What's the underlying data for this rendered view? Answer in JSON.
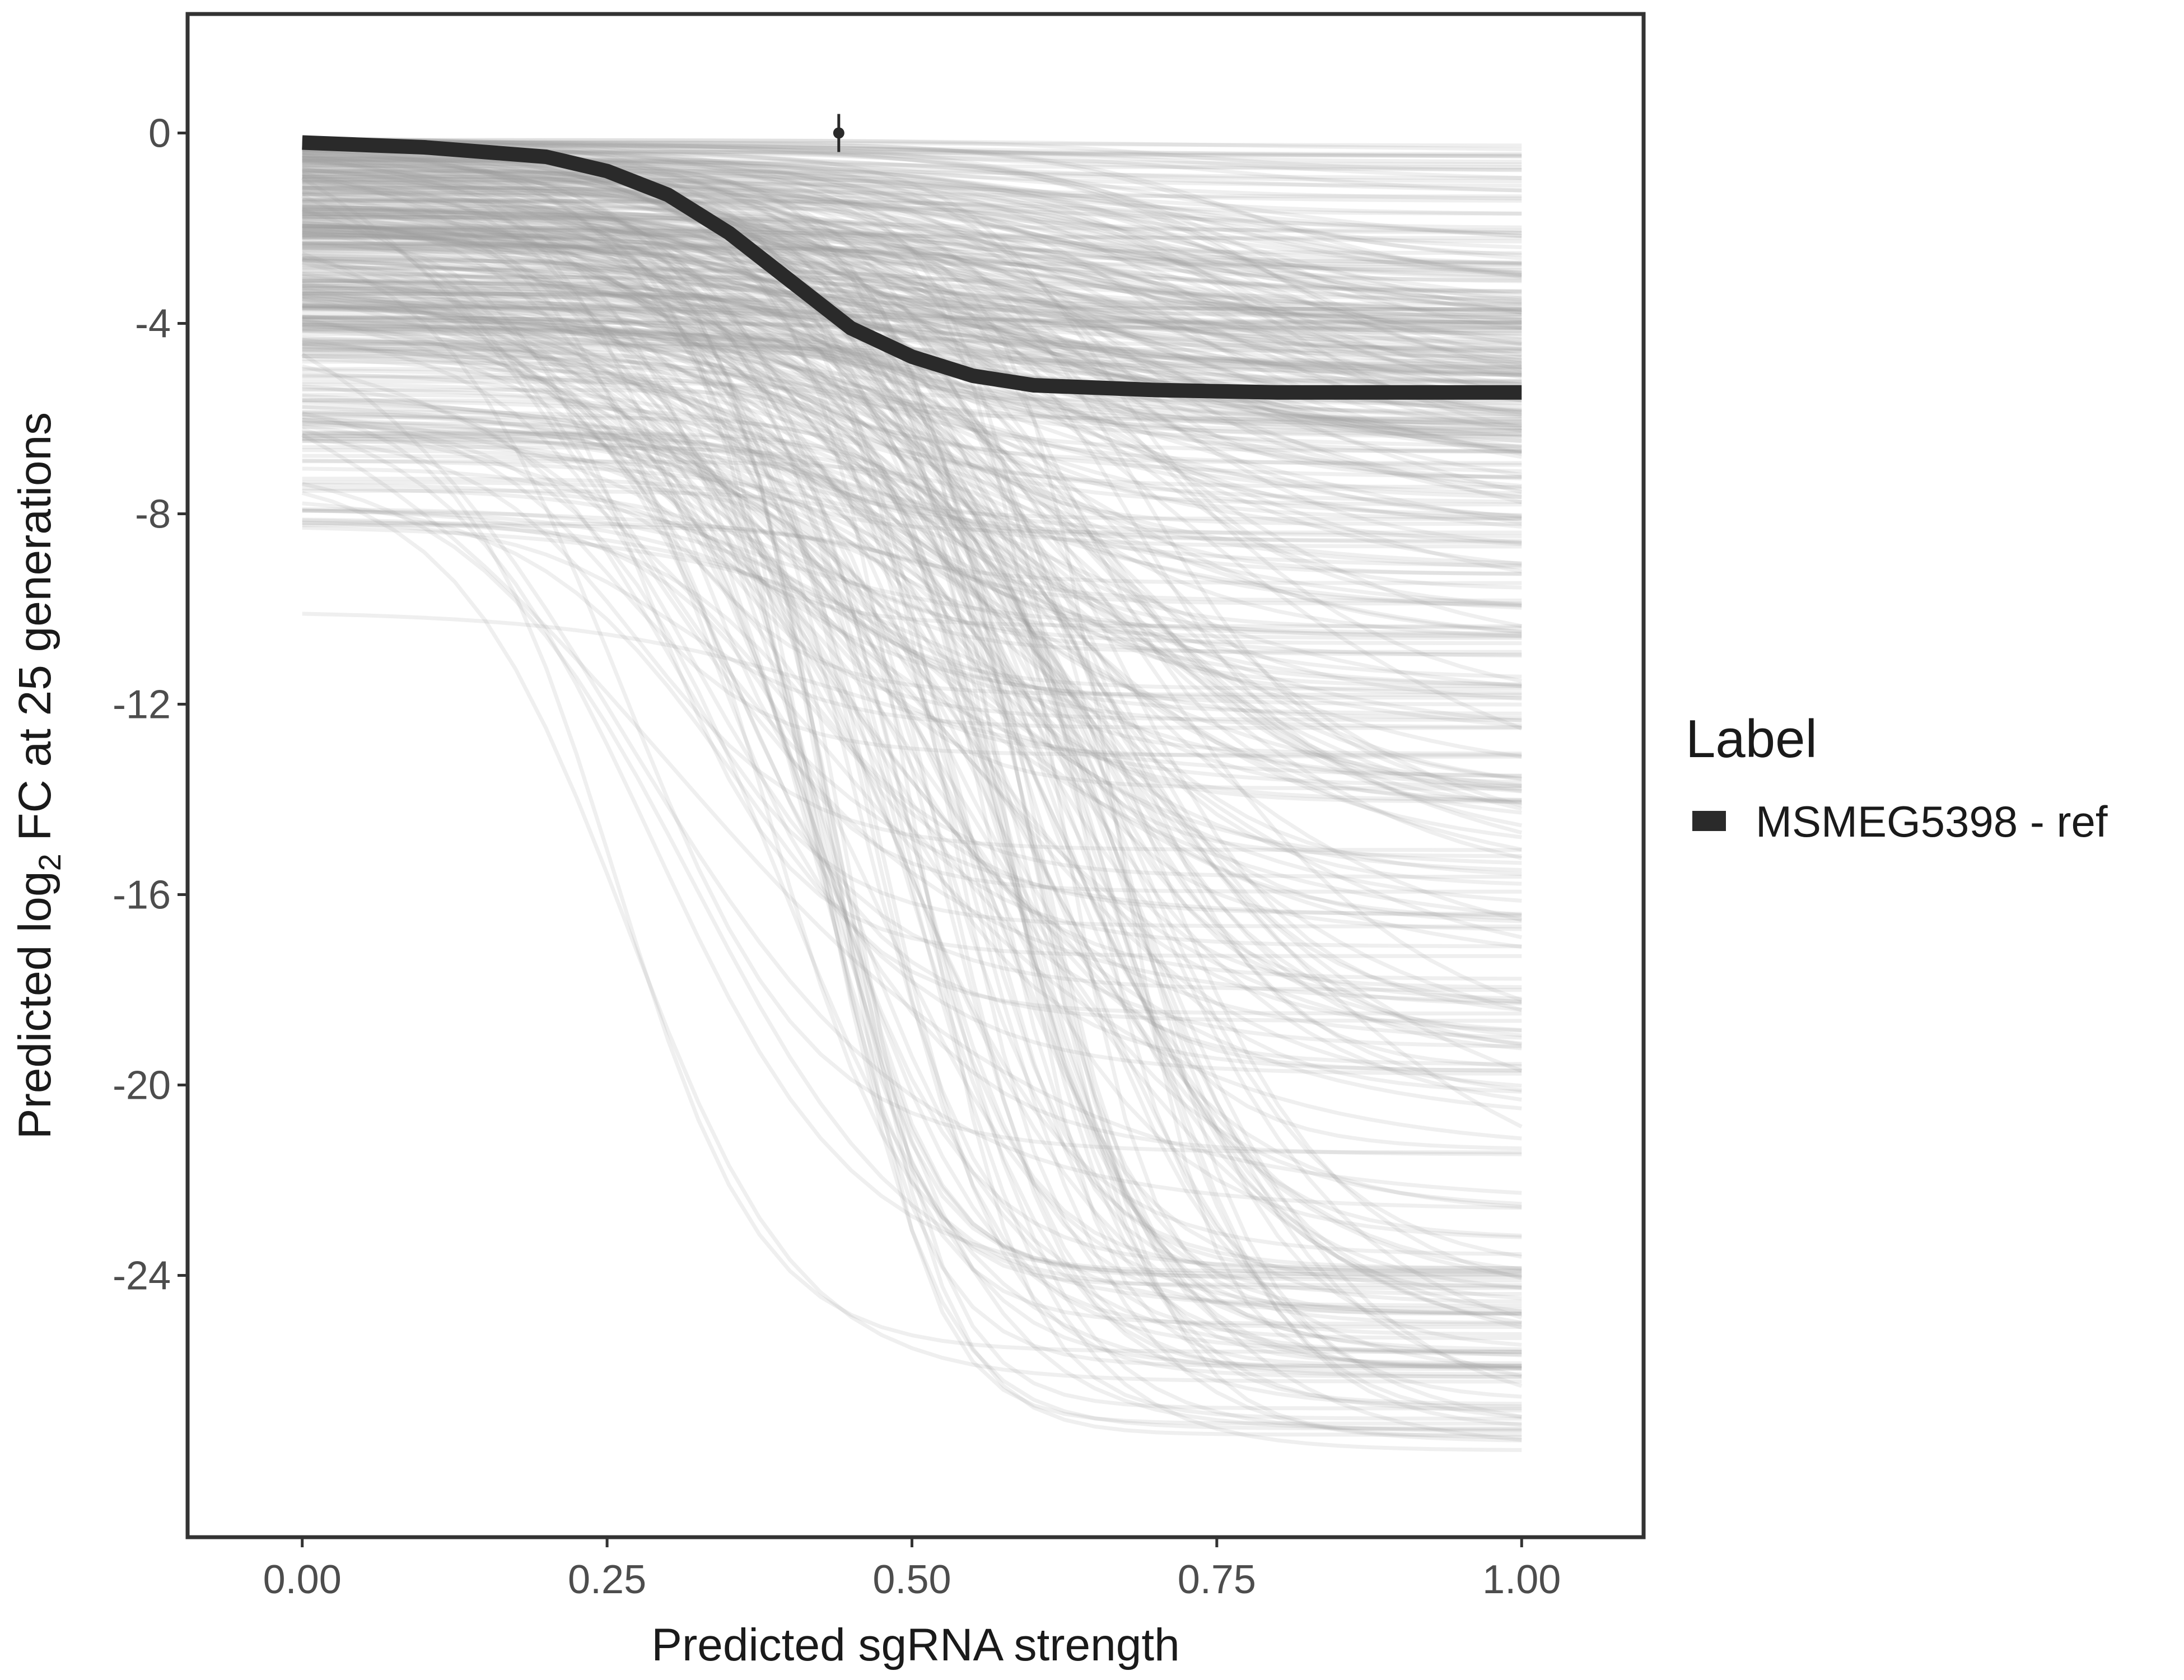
{
  "chart_data": {
    "type": "line",
    "title": "",
    "xlabel": "Predicted sgRNA strength",
    "ylabel_parts": {
      "prefix": "Predicted  log",
      "subscript": "2",
      "suffix": " FC at 25 generations"
    },
    "xlim": [
      -0.094,
      1.1
    ],
    "ylim": [
      -29.5,
      2.5
    ],
    "x_ticks": [
      0,
      0.25,
      0.5,
      0.75,
      1
    ],
    "x_tick_labels": [
      "0.00",
      "0.25",
      "0.50",
      "0.75",
      "1.00"
    ],
    "y_ticks": [
      0,
      -4,
      -8,
      -12,
      -16,
      -20,
      -24
    ],
    "y_tick_labels": [
      "0",
      "-4",
      "-8",
      "-12",
      "-16",
      "-20",
      "-24"
    ],
    "grid": false,
    "legend": {
      "title": "Label",
      "position": "right",
      "entries": [
        {
          "label": "MSMEG5398 - ref",
          "color": "#2a2a2a"
        }
      ]
    },
    "highlight_series": {
      "name": "MSMEG5398 - ref",
      "color": "#2a2a2a",
      "x": [
        0,
        0.1,
        0.2,
        0.25,
        0.3,
        0.35,
        0.4,
        0.45,
        0.5,
        0.55,
        0.6,
        0.7,
        0.8,
        0.9,
        1
      ],
      "y": [
        -0.2,
        -0.3,
        -0.5,
        -0.8,
        -1.3,
        -2.1,
        -3.1,
        -4.1,
        -4.7,
        -5.1,
        -5.3,
        -5.4,
        -5.45,
        -5.45,
        -5.45
      ]
    },
    "reference_point": {
      "x": 0.44,
      "y": 0,
      "err_low": -0.4,
      "err_high": 0.4
    },
    "background_curves": {
      "color": "#999999",
      "description_count": 450,
      "x_range": [
        0,
        1
      ],
      "start_y_range": [
        -10.1,
        -0.1
      ],
      "end_y_range": [
        -27.8,
        -0.1
      ]
    }
  }
}
